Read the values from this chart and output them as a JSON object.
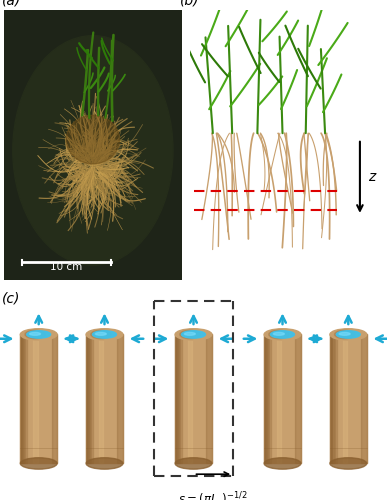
{
  "fig_width": 3.87,
  "fig_height": 5.0,
  "dpi": 100,
  "bg_color": "#ffffff",
  "panel_labels": [
    "(a)",
    "(b)",
    "(c)"
  ],
  "panel_label_fontsize": 10,
  "root_photo_bg": "#2a3020",
  "cylinder_color": "#c8a06e",
  "cylinder_top_color": "#40c0e8",
  "cylinder_dark_color": "#8a6030",
  "cylinder_highlight": "#ddb880",
  "arrow_color": "#1eaad4",
  "dashed_box_color": "#333333",
  "red_dashes_color": "#dd0000",
  "z_arrow_color": "#111111",
  "scale_bar_text": "10 cm",
  "n_cylinders": 5,
  "plant_stem_color": "#3a8a0a",
  "leaf_color": "#4aaa18",
  "leaf_color2": "#2d7a08",
  "root_color": "#c8a06e",
  "root_color2": "#b89058"
}
